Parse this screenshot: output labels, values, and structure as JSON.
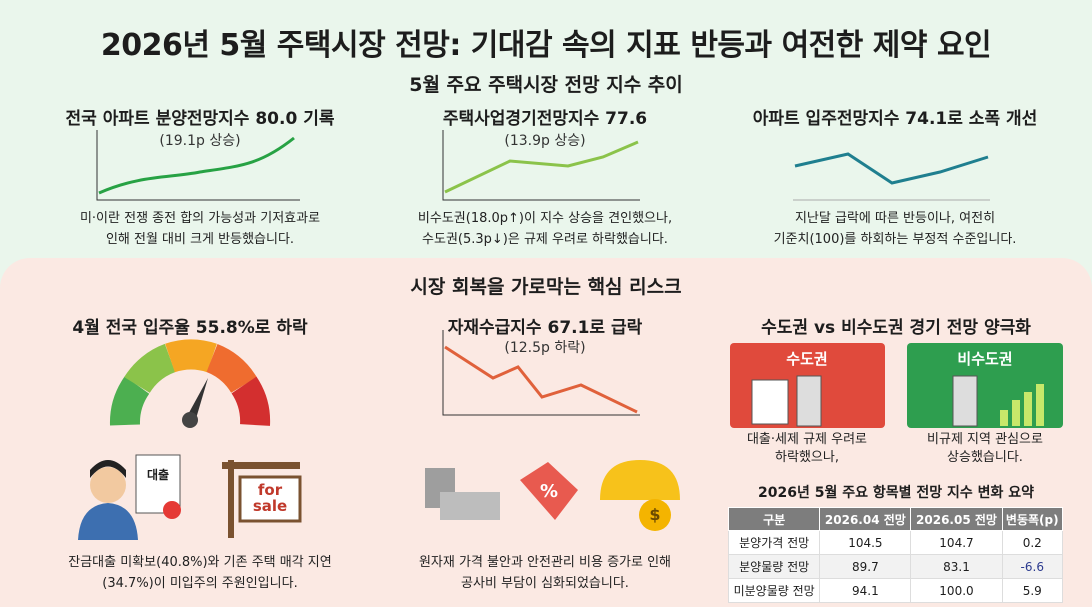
{
  "header": {
    "title": "2026년 5월 주택시장 전망: 기대감 속의 지표 반등과 여전한 제약 요인"
  },
  "outlook": {
    "title": "5월 주요 주택시장 전망 지수 추이",
    "cards": [
      {
        "title": "전국 아파트 분양전망지수 80.0 기록",
        "sub": "(19.1p 상승)",
        "desc": [
          "미·이란 전쟁 종전 합의 가능성과 기저효과로",
          "인해 전월 대비 크게 반등했습니다."
        ]
      },
      {
        "title": "주택사업경기전망지수 77.6",
        "sub": "(13.9p 상승)",
        "desc": [
          "비수도권(18.0p↑)이 지수 상승을 견인했으나,",
          "수도권(5.3p↓)은 규제 우려로 하락했습니다."
        ]
      },
      {
        "title": "아파트 입주전망지수 74.1로 소폭 개선",
        "desc": [
          "지난달 급락에 따른 반등이나, 여전히",
          "기준치(100)를 하회하는 부정적 수준입니다."
        ]
      }
    ]
  },
  "risks": {
    "title": "시장 회복을 가로막는 핵심 리스크",
    "occupancy": {
      "title": "4월 전국 입주율 55.8%로 하락",
      "icon_loan": "대출",
      "icon_sign": [
        "for",
        "sale"
      ],
      "desc": [
        "잔금대출 미확보(40.8%)와 기존 주택 매각 지연",
        "(34.7%)이 미입주의 주원인입니다."
      ]
    },
    "materials": {
      "title": "자재수급지수 67.1로 급락",
      "sub": "(12.5p 하락)",
      "icon_tag": "%",
      "icon_coin": "$",
      "desc": [
        "원자재 가격 불안과 안전관리 비용 증가로 인해",
        "공사비 부담이 심화되었습니다."
      ]
    },
    "regions": {
      "title": "수도권 vs 비수도권 경기 전망 양극화",
      "capital": {
        "label": "수도권",
        "desc": [
          "대출·세제 규제 우려로",
          "하락했으나,"
        ]
      },
      "non_capital": {
        "label": "비수도권",
        "desc": [
          "비규제 지역 관심으로",
          "상승했습니다."
        ]
      }
    }
  },
  "table": {
    "title": "2026년 5월 주요 항목별 전망 지수 변화 요약",
    "headers": [
      "구분",
      "2026.04 전망",
      "2026.05 전망",
      "변동폭(p)"
    ],
    "rows": [
      [
        "분양가격 전망",
        "104.5",
        "104.7",
        "0.2"
      ],
      [
        "분양물량 전망",
        "89.7",
        "83.1",
        "-6.6"
      ],
      [
        "미분양물량 전망",
        "94.1",
        "100.0",
        "5.9"
      ]
    ]
  }
}
